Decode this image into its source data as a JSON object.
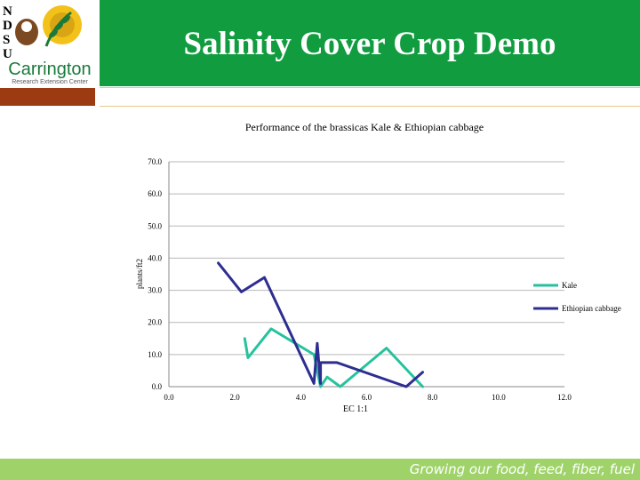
{
  "slide": {
    "title": "Salinity Cover Crop Demo",
    "footer": "Growing our food, feed, fiber, fuel",
    "logo": {
      "letters": [
        "N",
        "D",
        "S",
        "U"
      ],
      "name": "Carrington",
      "subtitle": "Research Extension Center"
    },
    "colors": {
      "title_band": "#119c3f",
      "footer_band": "#9fd36a",
      "accent_bar": "#9c3a12",
      "logo_sun": "#f2c21a",
      "logo_text": "#1a7a3a"
    }
  },
  "chart_data": {
    "type": "line",
    "title": "Performance of the brassicas Kale & Ethiopian cabbage",
    "xlabel": "EC 1:1",
    "ylabel": "plants/ft2",
    "xlim": [
      0,
      12
    ],
    "ylim": [
      0,
      70
    ],
    "xticks": [
      "0.0",
      "2.0",
      "4.0",
      "6.0",
      "8.0",
      "10.0",
      "12.0"
    ],
    "yticks": [
      "0.0",
      "10.0",
      "20.0",
      "30.0",
      "40.0",
      "50.0",
      "60.0",
      "70.0"
    ],
    "grid": "horizontal",
    "legend": "right",
    "series": [
      {
        "name": "Kale",
        "color": "#26c29e",
        "x": [
          2.3,
          2.4,
          3.1,
          4.4,
          4.6,
          4.8,
          5.2,
          6.6,
          7.7
        ],
        "y": [
          15.0,
          9.0,
          18.0,
          10.0,
          0.0,
          3.0,
          0.0,
          12.0,
          0.0
        ]
      },
      {
        "name": "Ethiopian cabbage",
        "color": "#2e2d91",
        "x": [
          1.5,
          2.2,
          2.9,
          4.4,
          4.5,
          4.6,
          4.6,
          5.1,
          7.2,
          7.7
        ],
        "y": [
          38.5,
          29.5,
          34.0,
          1.0,
          13.5,
          1.0,
          7.5,
          7.5,
          0.0,
          4.5
        ]
      }
    ]
  }
}
